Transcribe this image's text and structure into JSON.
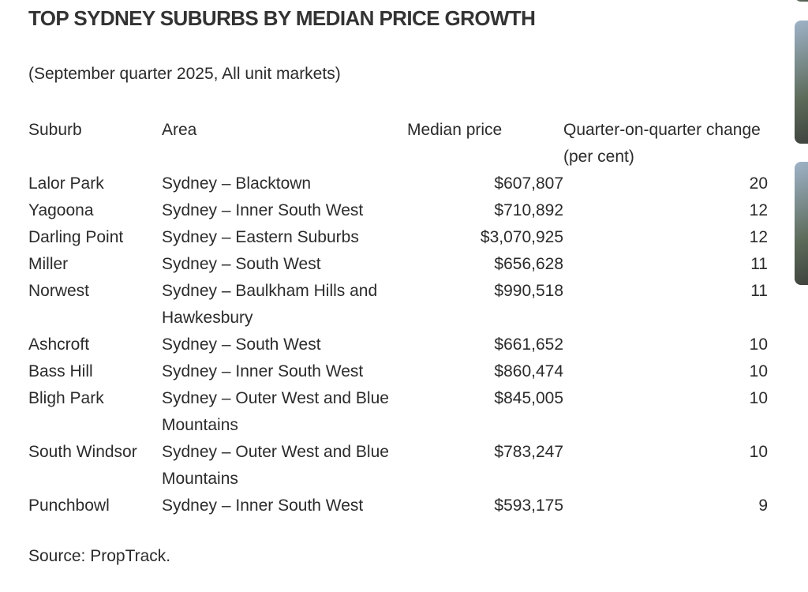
{
  "title": "TOP SYDNEY SUBURBS BY MEDIAN PRICE GROWTH",
  "subtitle": "(September quarter 2025, All unit markets)",
  "table": {
    "header": [
      "Suburb",
      "Area",
      "Median price",
      "Quarter-on-quarter change (per cent)"
    ],
    "rows": [
      [
        "Lalor Park",
        "Sydney – Blacktown",
        "$607,807",
        20
      ],
      [
        "Yagoona",
        "Sydney – Inner South West",
        "$710,892",
        12
      ],
      [
        "Darling Point",
        "Sydney – Eastern Suburbs",
        "$3,070,925",
        12
      ],
      [
        "Miller",
        "Sydney – South West",
        "$656,628",
        11
      ],
      [
        "Norwest",
        "Sydney – Baulkham Hills and Hawkesbury",
        "$990,518",
        11
      ],
      [
        "Ashcroft",
        "Sydney – South West",
        "$661,652",
        10
      ],
      [
        "Bass Hill",
        "Sydney – Inner South West",
        "$860,474",
        10
      ],
      [
        "Bligh Park",
        "Sydney – Outer West and Blue Mountains",
        "$845,005",
        10
      ],
      [
        "South Windsor",
        "Sydney – Outer West and Blue Mountains",
        "$783,247",
        10
      ],
      [
        "Punchbowl",
        "Sydney – Inner South West",
        "$593,175",
        9
      ]
    ]
  },
  "source": "Source: PropTrack."
}
